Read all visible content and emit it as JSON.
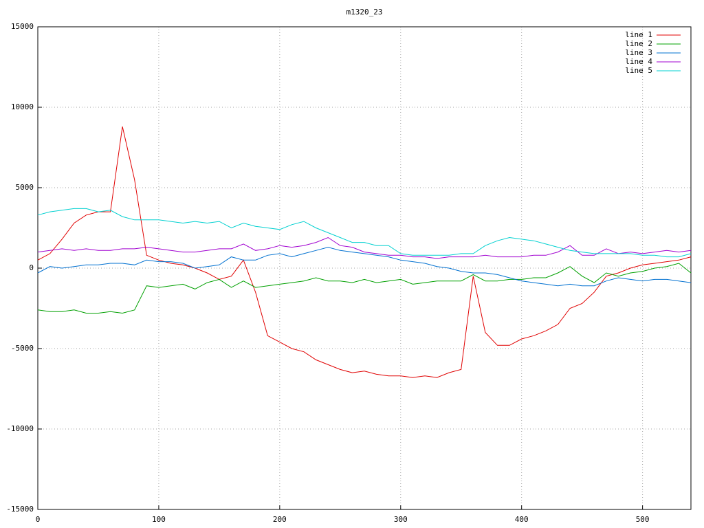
{
  "chart_data": {
    "type": "line",
    "title": "m1320_23",
    "x": [
      0,
      10,
      20,
      30,
      40,
      50,
      60,
      70,
      80,
      90,
      100,
      110,
      120,
      130,
      140,
      150,
      160,
      170,
      180,
      190,
      200,
      210,
      220,
      230,
      240,
      250,
      260,
      270,
      280,
      290,
      300,
      310,
      320,
      330,
      340,
      350,
      360,
      370,
      380,
      390,
      400,
      410,
      420,
      430,
      440,
      450,
      460,
      470,
      480,
      490,
      500,
      510,
      520,
      530,
      540
    ],
    "xlim": [
      0,
      540
    ],
    "xticks": [
      0,
      100,
      200,
      300,
      400,
      500
    ],
    "ylim": [
      -15000,
      15000
    ],
    "yticks": [
      -15000,
      -10000,
      -5000,
      0,
      5000,
      10000,
      15000
    ],
    "grid": true,
    "legend": "top-right",
    "series": [
      {
        "name": "line 1",
        "color": "#e00000",
        "values": [
          500,
          900,
          1800,
          2800,
          3300,
          3500,
          3500,
          8800,
          5500,
          800,
          500,
          300,
          200,
          0,
          -300,
          -700,
          -500,
          500,
          -1500,
          -4200,
          -4600,
          -5000,
          -5200,
          -5700,
          -6000,
          -6300,
          -6500,
          -6400,
          -6600,
          -6700,
          -6700,
          -6800,
          -6700,
          -6800,
          -6500,
          -6300,
          -500,
          -4000,
          -4800,
          -4800,
          -4400,
          -4200,
          -3900,
          -3500,
          -2500,
          -2200,
          -1500,
          -500,
          -300,
          0,
          200,
          300,
          400,
          500,
          700
        ]
      },
      {
        "name": "line 2",
        "color": "#00a000",
        "values": [
          -2600,
          -2700,
          -2700,
          -2600,
          -2800,
          -2800,
          -2700,
          -2800,
          -2600,
          -1100,
          -1200,
          -1100,
          -1000,
          -1300,
          -900,
          -700,
          -1200,
          -800,
          -1200,
          -1100,
          -1000,
          -900,
          -800,
          -600,
          -800,
          -800,
          -900,
          -700,
          -900,
          -800,
          -700,
          -1000,
          -900,
          -800,
          -800,
          -800,
          -400,
          -800,
          -800,
          -700,
          -700,
          -600,
          -600,
          -300,
          100,
          -500,
          -900,
          -300,
          -500,
          -300,
          -200,
          0,
          100,
          300,
          -300
        ]
      },
      {
        "name": "line 3",
        "color": "#0070d0",
        "values": [
          -300,
          100,
          0,
          100,
          200,
          200,
          300,
          300,
          200,
          500,
          400,
          400,
          300,
          0,
          100,
          200,
          700,
          500,
          500,
          800,
          900,
          700,
          900,
          1100,
          1300,
          1100,
          1000,
          900,
          800,
          700,
          500,
          400,
          300,
          100,
          0,
          -200,
          -300,
          -300,
          -400,
          -600,
          -800,
          -900,
          -1000,
          -1100,
          -1000,
          -1100,
          -1100,
          -800,
          -600,
          -700,
          -800,
          -700,
          -700,
          -800,
          -900
        ]
      },
      {
        "name": "line 4",
        "color": "#a000d0",
        "values": [
          1000,
          1100,
          1200,
          1100,
          1200,
          1100,
          1100,
          1200,
          1200,
          1300,
          1200,
          1100,
          1000,
          1000,
          1100,
          1200,
          1200,
          1500,
          1100,
          1200,
          1400,
          1300,
          1400,
          1600,
          1900,
          1400,
          1300,
          1000,
          900,
          800,
          800,
          700,
          700,
          600,
          700,
          700,
          700,
          800,
          700,
          700,
          700,
          800,
          800,
          1000,
          1400,
          800,
          800,
          1200,
          900,
          1000,
          900,
          1000,
          1100,
          1000,
          1100
        ]
      },
      {
        "name": "line 5",
        "color": "#00d0d0",
        "values": [
          3300,
          3500,
          3600,
          3700,
          3700,
          3500,
          3600,
          3200,
          3000,
          3000,
          3000,
          2900,
          2800,
          2900,
          2800,
          2900,
          2500,
          2800,
          2600,
          2500,
          2400,
          2700,
          2900,
          2500,
          2200,
          1900,
          1600,
          1600,
          1400,
          1400,
          900,
          800,
          800,
          800,
          800,
          900,
          900,
          1400,
          1700,
          1900,
          1800,
          1700,
          1500,
          1300,
          1100,
          1000,
          900,
          900,
          900,
          900,
          800,
          800,
          700,
          700,
          900
        ]
      }
    ]
  }
}
